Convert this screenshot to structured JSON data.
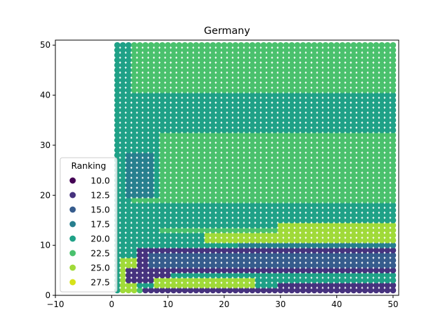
{
  "chart_data": {
    "type": "scatter",
    "title": "Germany",
    "xlabel": "",
    "ylabel": "",
    "xlim": [
      -10,
      51
    ],
    "ylim": [
      0,
      51
    ],
    "xticks": [
      "−10",
      "0",
      "10",
      "20",
      "30",
      "40",
      "50"
    ],
    "yticks": [
      "0",
      "10",
      "20",
      "30",
      "40",
      "50"
    ],
    "grid": false,
    "colormap": "viridis",
    "color_range": [
      10,
      28.5
    ],
    "legend": {
      "title": "Ranking",
      "placement": "lower-left",
      "entries": [
        "10.0",
        "12.5",
        "15.0",
        "17.5",
        "20.0",
        "22.5",
        "25.0",
        "27.5"
      ],
      "colors": [
        "#440154",
        "#46327e",
        "#365c8d",
        "#277f8e",
        "#1fa187",
        "#4ac16d",
        "#a0da39",
        "#d7e219"
      ]
    },
    "grid_points": {
      "x_range": [
        1,
        50
      ],
      "y_range": [
        1,
        50
      ],
      "step": 1,
      "ranking_regions": [
        {
          "ranking": 22.5,
          "x": [
            1,
            50
          ],
          "y": [
            1,
            50
          ]
        },
        {
          "ranking": 20.0,
          "x": [
            1,
            3
          ],
          "y": [
            1,
            50
          ]
        },
        {
          "ranking": 20.0,
          "x": [
            4,
            50
          ],
          "y": [
            33,
            40
          ]
        },
        {
          "ranking": 20.0,
          "x": [
            1,
            8
          ],
          "y": [
            20,
            32
          ]
        },
        {
          "ranking": 20.0,
          "x": [
            3,
            50
          ],
          "y": [
            14,
            18
          ]
        },
        {
          "ranking": 20.0,
          "x": [
            3,
            50
          ],
          "y": [
            10,
            12
          ]
        },
        {
          "ranking": 20.0,
          "x": [
            1,
            8
          ],
          "y": [
            8,
            14
          ]
        },
        {
          "ranking": 20.0,
          "x": [
            1,
            50
          ],
          "y": [
            2,
            4
          ]
        },
        {
          "ranking": 17.5,
          "x": [
            3,
            7
          ],
          "y": [
            20,
            28
          ]
        },
        {
          "ranking": 17.5,
          "x": [
            23,
            50
          ],
          "y": [
            10,
            11
          ]
        },
        {
          "ranking": 25.0,
          "x": [
            17,
            50
          ],
          "y": [
            11,
            12
          ]
        },
        {
          "ranking": 25.0,
          "x": [
            30,
            50
          ],
          "y": [
            13,
            14
          ]
        },
        {
          "ranking": 25.0,
          "x": [
            2,
            4
          ],
          "y": [
            1,
            7
          ]
        },
        {
          "ranking": 12.5,
          "x": [
            5,
            50
          ],
          "y": [
            5,
            9
          ]
        },
        {
          "ranking": 15.0,
          "x": [
            7,
            50
          ],
          "y": [
            6,
            8
          ]
        },
        {
          "ranking": 12.5,
          "x": [
            3,
            10
          ],
          "y": [
            3,
            5
          ]
        },
        {
          "ranking": 12.5,
          "x": [
            6,
            50
          ],
          "y": [
            1,
            1
          ]
        },
        {
          "ranking": 12.5,
          "x": [
            30,
            50
          ],
          "y": [
            2,
            2
          ]
        },
        {
          "ranking": 27.5,
          "x": [
            10,
            20
          ],
          "y": [
            2,
            2
          ]
        },
        {
          "ranking": 25.0,
          "x": [
            8,
            25
          ],
          "y": [
            2,
            3
          ]
        }
      ]
    }
  }
}
